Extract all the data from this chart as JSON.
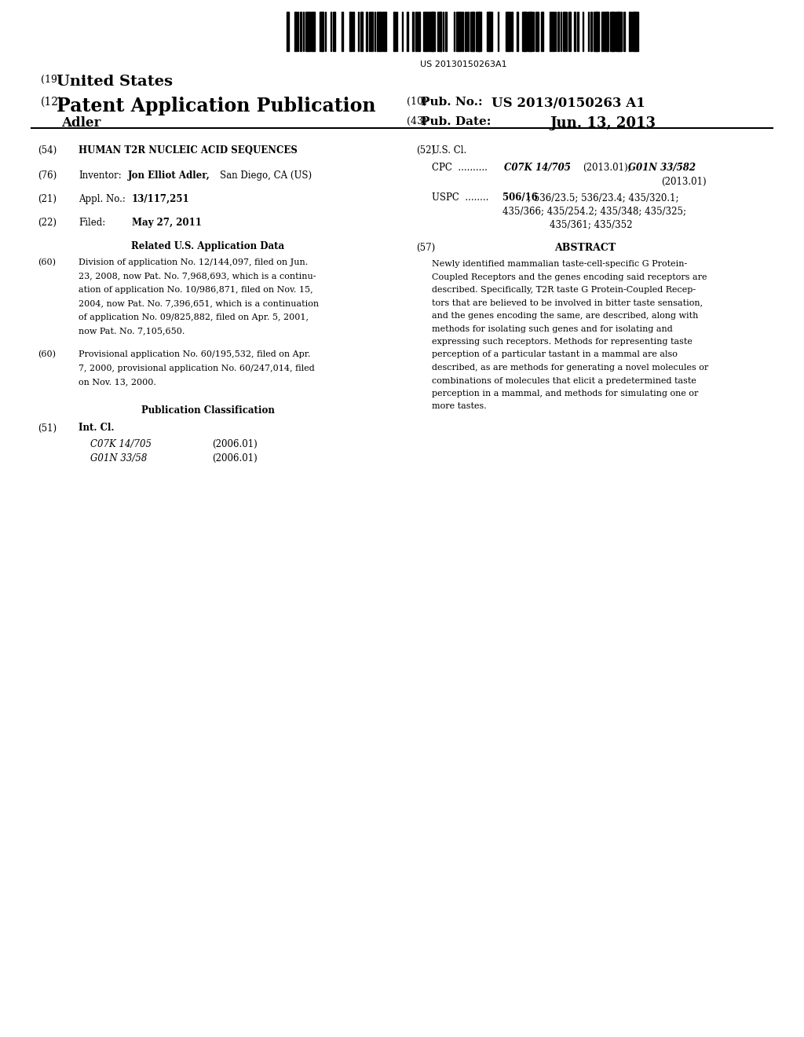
{
  "background_color": "#ffffff",
  "barcode_text": "US 20130150263A1",
  "header": {
    "line19_prefix": "(19)",
    "line19_main": "United States",
    "line12_prefix": "(12)",
    "line12_main": "Patent Application Publication",
    "author": "Adler",
    "line10_prefix": "(10)",
    "line10_label": "Pub. No.:",
    "line10_value": "US 2013/0150263 A1",
    "line43_prefix": "(43)",
    "line43_label": "Pub. Date:",
    "line43_value": "Jun. 13, 2013"
  },
  "left_col": {
    "line54_label": "(54)",
    "line54_text": "HUMAN T2R NUCLEIC ACID SEQUENCES",
    "line76_label": "(76)",
    "line76_inventor": "Inventor:",
    "line76_name": "Jon Elliot Adler,",
    "line76_city": "San Diego, CA (US)",
    "line21_label": "(21)",
    "line21_prefix": "Appl. No.:",
    "line21_value": "13/117,251",
    "line22_label": "(22)",
    "line22_prefix": "Filed:",
    "line22_value": "May 27, 2011",
    "related_header": "Related U.S. Application Data",
    "line60a_label": "(60)",
    "line60a_lines": [
      "Division of application No. 12/144,097, filed on Jun.",
      "23, 2008, now Pat. No. 7,968,693, which is a continu-",
      "ation of application No. 10/986,871, filed on Nov. 15,",
      "2004, now Pat. No. 7,396,651, which is a continuation",
      "of application No. 09/825,882, filed on Apr. 5, 2001,",
      "now Pat. No. 7,105,650."
    ],
    "line60b_label": "(60)",
    "line60b_lines": [
      "Provisional application No. 60/195,532, filed on Apr.",
      "7, 2000, provisional application No. 60/247,014, filed",
      "on Nov. 13, 2000."
    ],
    "pub_class_header": "Publication Classification",
    "line51_label": "(51)",
    "line51_text": "Int. Cl.",
    "int_cl_c07k": "C07K 14/705",
    "int_cl_c07k_year": "(2006.01)",
    "int_cl_g01n": "G01N 33/58",
    "int_cl_g01n_year": "(2006.01)"
  },
  "right_col": {
    "line52_label": "(52)",
    "line52_text": "U.S. Cl.",
    "cpc_label": "CPC",
    "cpc_dots": "..........",
    "cpc_text1": "C07K 14/705",
    "cpc_text1_year": "(2013.01);",
    "cpc_text2": "G01N 33/582",
    "cpc_text2_cont": "(2013.01)",
    "uspc_label": "USPC",
    "uspc_dots": "........",
    "uspc_bold": "506/16",
    "uspc_line1": "; 536/23.5; 536/23.4; 435/320.1;",
    "uspc_line2": "435/366; 435/254.2; 435/348; 435/325;",
    "uspc_line3": "435/361; 435/352",
    "abstract_label": "(57)",
    "abstract_header": "ABSTRACT",
    "abstract_lines": [
      "Newly identified mammalian taste-cell-specific G Protein-",
      "Coupled Receptors and the genes encoding said receptors are",
      "described. Specifically, T2R taste G Protein-Coupled Recep-",
      "tors that are believed to be involved in bitter taste sensation,",
      "and the genes encoding the same, are described, along with",
      "methods for isolating such genes and for isolating and",
      "expressing such receptors. Methods for representing taste",
      "perception of a particular tastant in a mammal are also",
      "described, as are methods for generating a novel molecules or",
      "combinations of molecules that elicit a predetermined taste",
      "perception in a mammal, and methods for simulating one or",
      "more tastes."
    ]
  }
}
